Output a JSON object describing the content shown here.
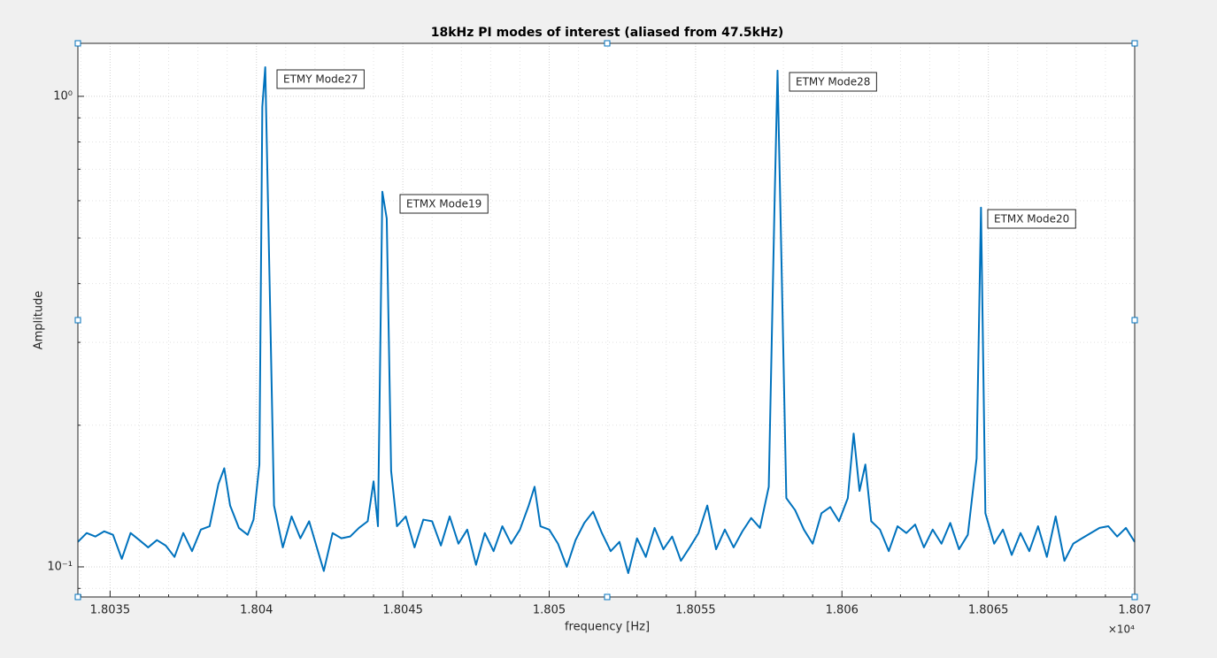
{
  "chart_data": {
    "type": "line",
    "title": "18kHz PI modes of interest (aliased from 47.5kHz)",
    "xlabel": "frequency [Hz]",
    "ylabel": "Amplitude",
    "x_multiplier": "×10⁴",
    "xlim": [
      18033.9,
      18070
    ],
    "ylim": [
      0.0863,
      1.296
    ],
    "yscale": "log",
    "grid": true,
    "minor_grid": true,
    "xticks": [
      {
        "value": 18035,
        "label": "1.8035"
      },
      {
        "value": 18040,
        "label": "1.804"
      },
      {
        "value": 18045,
        "label": "1.8045"
      },
      {
        "value": 18050,
        "label": "1.805"
      },
      {
        "value": 18055,
        "label": "1.8055"
      },
      {
        "value": 18060,
        "label": "1.806"
      },
      {
        "value": 18065,
        "label": "1.8065"
      },
      {
        "value": 18070,
        "label": "1.807"
      }
    ],
    "yticks": [
      {
        "value": 0.1,
        "label": "10⁻¹"
      },
      {
        "value": 1,
        "label": "10⁰"
      }
    ],
    "xminorticks": [
      18034,
      18036,
      18037,
      18038,
      18039,
      18041,
      18042,
      18043,
      18044,
      18046,
      18047,
      18048,
      18049,
      18051,
      18052,
      18053,
      18054,
      18056,
      18057,
      18058,
      18059,
      18061,
      18062,
      18063,
      18064,
      18066,
      18067,
      18068,
      18069
    ],
    "yminorticks": [
      0.09,
      0.2,
      0.3,
      0.4,
      0.5,
      0.6,
      0.7,
      0.8,
      0.9
    ],
    "annotations": [
      "ETMY Mode27",
      "ETMX Mode19",
      "ETMY Mode28",
      "ETMX Mode20"
    ],
    "x": [
      18033.9,
      18034.2,
      18034.5,
      18034.8,
      18035.1,
      18035.4,
      18035.7,
      18036.0,
      18036.3,
      18036.6,
      18036.9,
      18037.2,
      18037.5,
      18037.8,
      18038.1,
      18038.4,
      18038.7,
      18038.9,
      18039.1,
      18039.4,
      18039.7,
      18039.9,
      18040.1,
      18040.2,
      18040.3,
      18040.45,
      18040.6,
      18040.9,
      18041.2,
      18041.5,
      18041.8,
      18042.1,
      18042.3,
      18042.6,
      18042.9,
      18043.2,
      18043.5,
      18043.8,
      18044.0,
      18044.15,
      18044.3,
      18044.45,
      18044.6,
      18044.8,
      18045.1,
      18045.4,
      18045.7,
      18046.0,
      18046.3,
      18046.6,
      18046.9,
      18047.2,
      18047.5,
      18047.8,
      18048.1,
      18048.4,
      18048.7,
      18049.0,
      18049.3,
      18049.5,
      18049.7,
      18050.0,
      18050.3,
      18050.6,
      18050.9,
      18051.2,
      18051.5,
      18051.8,
      18052.1,
      18052.4,
      18052.7,
      18053.0,
      18053.3,
      18053.6,
      18053.9,
      18054.2,
      18054.5,
      18054.8,
      18055.1,
      18055.4,
      18055.7,
      18056.0,
      18056.3,
      18056.6,
      18056.9,
      18057.2,
      18057.5,
      18057.7,
      18057.8,
      18057.95,
      18058.1,
      18058.4,
      18058.7,
      18059.0,
      18059.3,
      18059.6,
      18059.9,
      18060.2,
      18060.4,
      18060.6,
      18060.8,
      18061.0,
      18061.3,
      18061.6,
      18061.9,
      18062.2,
      18062.5,
      18062.8,
      18063.1,
      18063.4,
      18063.7,
      18064.0,
      18064.3,
      18064.6,
      18064.75,
      18064.9,
      18065.2,
      18065.5,
      18065.8,
      18066.1,
      18066.4,
      18066.7,
      18067.0,
      18067.3,
      18067.6,
      18067.9,
      18068.2,
      18068.5,
      18068.8,
      18069.1,
      18069.4,
      18069.7,
      18070.0
    ],
    "series": [
      {
        "name": "Amplitude",
        "color": "#0072bd",
        "values": [
          0.113,
          0.118,
          0.116,
          0.119,
          0.117,
          0.104,
          0.118,
          0.114,
          0.11,
          0.114,
          0.111,
          0.105,
          0.118,
          0.108,
          0.12,
          0.122,
          0.15,
          0.162,
          0.135,
          0.121,
          0.117,
          0.126,
          0.165,
          0.95,
          1.153,
          0.4,
          0.135,
          0.11,
          0.128,
          0.115,
          0.125,
          0.108,
          0.098,
          0.118,
          0.115,
          0.116,
          0.121,
          0.125,
          0.152,
          0.122,
          0.627,
          0.55,
          0.16,
          0.122,
          0.128,
          0.11,
          0.126,
          0.125,
          0.111,
          0.128,
          0.112,
          0.12,
          0.101,
          0.118,
          0.108,
          0.122,
          0.112,
          0.12,
          0.135,
          0.148,
          0.122,
          0.12,
          0.112,
          0.1,
          0.114,
          0.124,
          0.131,
          0.118,
          0.108,
          0.113,
          0.097,
          0.115,
          0.105,
          0.121,
          0.109,
          0.116,
          0.103,
          0.11,
          0.118,
          0.135,
          0.109,
          0.12,
          0.11,
          0.119,
          0.127,
          0.121,
          0.148,
          0.6,
          1.134,
          0.4,
          0.14,
          0.132,
          0.12,
          0.112,
          0.13,
          0.134,
          0.125,
          0.14,
          0.192,
          0.145,
          0.165,
          0.125,
          0.12,
          0.108,
          0.122,
          0.118,
          0.123,
          0.11,
          0.12,
          0.112,
          0.124,
          0.109,
          0.117,
          0.17,
          0.58,
          0.13,
          0.112,
          0.12,
          0.106,
          0.118,
          0.108,
          0.122,
          0.105,
          0.128,
          0.103,
          0.112,
          0.115,
          0.118,
          0.121,
          0.122,
          0.116,
          0.121,
          0.113
        ]
      }
    ]
  }
}
